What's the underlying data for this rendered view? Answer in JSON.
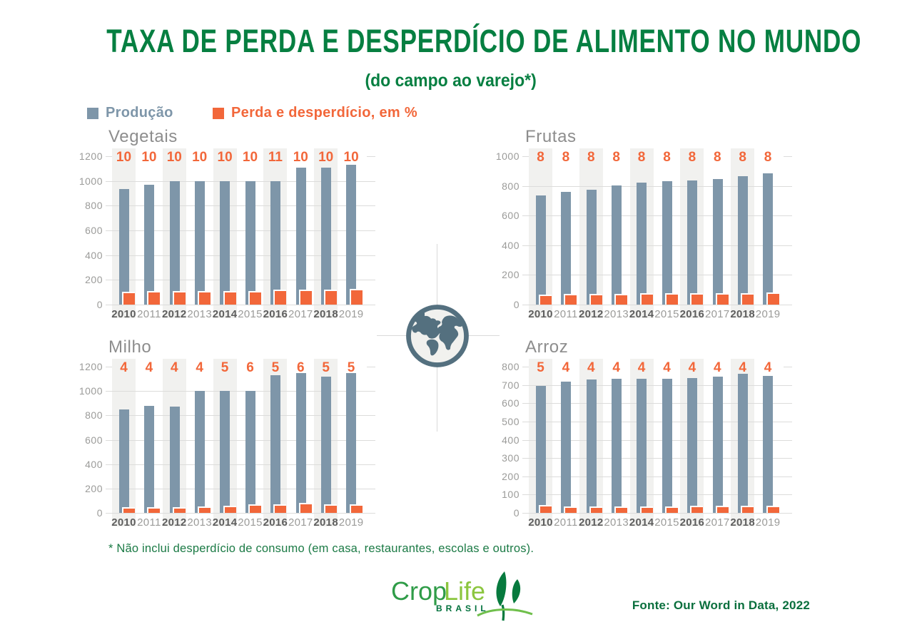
{
  "header": {
    "title": "TAXA DE PERDA E DESPERDÍCIO DE ALIMENTO NO MUNDO",
    "subtitle": "(do campo ao varejo*)"
  },
  "legend": [
    {
      "key": "production",
      "label": "Produção",
      "color": "#7e96a9"
    },
    {
      "key": "loss",
      "label": "Perda e desperdício, em %",
      "color": "#f2673a"
    }
  ],
  "years": [
    "2010",
    "2011",
    "2012",
    "2013",
    "2014",
    "2015",
    "2016",
    "2017",
    "2018",
    "2019"
  ],
  "chart_data": [
    {
      "type": "bar",
      "title": "Vegetais",
      "categories": [
        "2010",
        "2011",
        "2012",
        "2013",
        "2014",
        "2015",
        "2016",
        "2017",
        "2018",
        "2019"
      ],
      "series": [
        {
          "name": "Produção",
          "values": [
            935,
            970,
            1000,
            1000,
            1000,
            1000,
            1000,
            1110,
            1110,
            1130
          ]
        },
        {
          "name": "Perda e desperdício, em %",
          "values": [
            10,
            10,
            10,
            10,
            10,
            10,
            11,
            10,
            10,
            10
          ]
        }
      ],
      "ylim": [
        0,
        1200
      ],
      "ytick": 200,
      "grid": true,
      "highlighted_years": [
        "2010",
        "2012",
        "2014",
        "2016",
        "2018"
      ]
    },
    {
      "type": "bar",
      "title": "Frutas",
      "categories": [
        "2010",
        "2011",
        "2012",
        "2013",
        "2014",
        "2015",
        "2016",
        "2017",
        "2018",
        "2019"
      ],
      "series": [
        {
          "name": "Produção",
          "values": [
            735,
            760,
            775,
            805,
            820,
            830,
            838,
            845,
            865,
            885
          ]
        },
        {
          "name": "Perda e desperdício, em %",
          "values": [
            8,
            8,
            8,
            8,
            8,
            8,
            8,
            8,
            8,
            8
          ]
        }
      ],
      "ylim": [
        0,
        1000
      ],
      "ytick": 200,
      "grid": true,
      "highlighted_years": [
        "2010",
        "2012",
        "2014",
        "2016",
        "2018"
      ]
    },
    {
      "type": "bar",
      "title": "Milho",
      "categories": [
        "2010",
        "2011",
        "2012",
        "2013",
        "2014",
        "2015",
        "2016",
        "2017",
        "2018",
        "2019"
      ],
      "series": [
        {
          "name": "Produção",
          "values": [
            850,
            880,
            875,
            1000,
            1000,
            1000,
            1130,
            1145,
            1120,
            1145
          ]
        },
        {
          "name": "Perda e desperdício, em %",
          "values": [
            4,
            4,
            4,
            4,
            5,
            6,
            5,
            6,
            5,
            5
          ]
        }
      ],
      "ylim": [
        0,
        1200
      ],
      "ytick": 200,
      "grid": true,
      "highlighted_years": [
        "2010",
        "2012",
        "2014",
        "2016",
        "2018"
      ]
    },
    {
      "type": "bar",
      "title": "Arroz",
      "categories": [
        "2010",
        "2011",
        "2012",
        "2013",
        "2014",
        "2015",
        "2016",
        "2017",
        "2018",
        "2019"
      ],
      "series": [
        {
          "name": "Produção",
          "values": [
            695,
            720,
            730,
            735,
            733,
            735,
            737,
            745,
            760,
            750
          ]
        },
        {
          "name": "Perda e desperdício, em %",
          "values": [
            5,
            4,
            4,
            4,
            4,
            4,
            4,
            4,
            4,
            4
          ]
        }
      ],
      "ylim": [
        0,
        800
      ],
      "ytick": 100,
      "grid": true,
      "highlighted_years": [
        "2010",
        "2012",
        "2014",
        "2016",
        "2018"
      ]
    }
  ],
  "footnote": "* Não inclui desperdício de consumo (em casa, restaurantes, escolas e outros).",
  "source": "Fonte: Our Word in Data, 2022",
  "logo": {
    "text_primary": "Crop",
    "text_secondary": "Life",
    "text_country": "BRASIL"
  },
  "colors": {
    "production": "#7e96a9",
    "loss": "#f2673a",
    "title_green": "#067f41",
    "footnote_green": "#1b7a45",
    "source_green": "#0a6f3d",
    "band": "#f1f1ef",
    "gridline": "#dcdcdb",
    "axis_text": "#9b9b99",
    "axis_text_bold": "#5e5e5e",
    "chart_title": "#8d8d8d",
    "globe": "#54707f",
    "logo_primary": "#2f9c48",
    "logo_secondary": "#8cc63f",
    "logo_country": "#00713c"
  }
}
